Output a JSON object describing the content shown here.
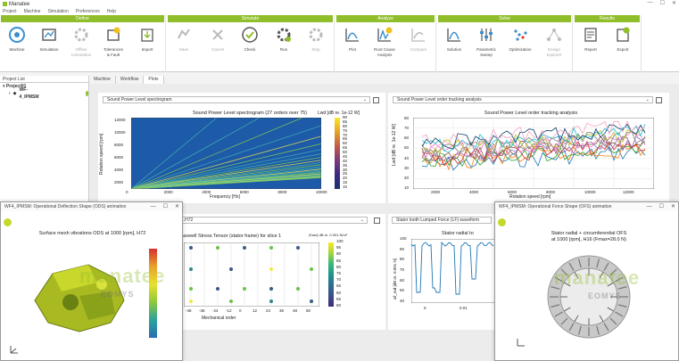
{
  "app": {
    "title": "Manatee"
  },
  "window_controls": {
    "minimize": "—",
    "maximize": "☐",
    "close": "✕"
  },
  "menu": [
    "Project",
    "Machine",
    "Simulation",
    "Preferences",
    "Help"
  ],
  "ribbon": {
    "groups": [
      {
        "title": "Define",
        "tools": [
          "Machine",
          "Simulation",
          "Offline\nCalculation",
          "Tolerances\n& Fault",
          "Import"
        ]
      },
      {
        "title": "Simulate",
        "tools": [
          "Save",
          "Cancel",
          "Check",
          "Run",
          "Stop"
        ]
      },
      {
        "title": "Analyze",
        "tools": [
          "Plot",
          "Root Cause\nAnalysis",
          "Compare"
        ]
      },
      {
        "title": "Solve",
        "tools": [
          "Solution",
          "Parametric\nSweep",
          "Optimization",
          "Design\nExplorer"
        ]
      },
      {
        "title": "Results",
        "tools": [
          "Report",
          "Export"
        ]
      }
    ]
  },
  "project_panel": {
    "header": "Project List",
    "project": "Project01",
    "item": "WF-4_IPMSM"
  },
  "tabs": [
    "Machine",
    "Workflow",
    "Plots"
  ],
  "plots": {
    "p1": {
      "select": "Sound Power Level spectrogram",
      "chart_title": "Sound Power Level spectrogram (27 orders over 75)",
      "ylabel": "Rotation speed [rpm]",
      "xlabel": "Frequency [Hz]",
      "colorbar_label": "Lwd [dB re. 1e-12 W]",
      "xticks": [
        "0",
        "2000",
        "4000",
        "6000",
        "8000",
        "10000"
      ],
      "yticks": [
        "12000",
        "10000",
        "8000",
        "6000",
        "4000",
        "2000"
      ],
      "cticks": [
        "90",
        "85",
        "80",
        "75",
        "70",
        "65",
        "60",
        "55",
        "50",
        "45",
        "40",
        "35",
        "30",
        "25",
        "20",
        "15",
        "10"
      ]
    },
    "p2": {
      "select": "Sound Power Level order tracking analysis",
      "chart_title": "Sound Power Level order tracking analysis",
      "ylabel": "Lwd [dB re. 1e-12 W]",
      "xlabel": "Rotation speed [rpm]",
      "xticks": [
        "2000",
        "4000",
        "6000",
        "8000",
        "10000",
        "12000"
      ],
      "yticks": [
        "80",
        "70",
        "60",
        "50",
        "40",
        "30",
        "20",
        "10"
      ]
    },
    "p3": {
      "select": "...H72",
      "chart_title": "p Maxwell Stress Tensor (stator frame) for slice 1",
      "colorbar_label": "|Srad| dB re. 0.001 N/m²",
      "xlabel": "Mechanical order",
      "xticks": [
        "-48",
        "-36",
        "-24",
        "-12",
        "0",
        "12",
        "24",
        "36",
        "48",
        "60"
      ],
      "cticks": [
        "100",
        "95",
        "90",
        "85",
        "80",
        "75",
        "70",
        "65",
        "60",
        "55",
        "50"
      ]
    },
    "p4": {
      "select": "Stator tooth Lumped Force (LF) waveform",
      "chart_title": "Stator radial to",
      "ylabel": "Δf_rad [dB re. 0.001 N]",
      "yticks": [
        "100",
        "90",
        "80",
        "70",
        "60",
        "50",
        "40"
      ],
      "xticks": [
        "0",
        "0.01"
      ]
    }
  },
  "float_left": {
    "title": "WF4_IPMSM: Operational Deflection Shape (ODS) animation",
    "caption": "Surface mesh vibrations ODS at 1000 [rpm], H72",
    "watermark": "manatee",
    "watermark2": "EOMYS"
  },
  "float_right": {
    "title": "WF4_IPMSM: Operational Force Shape (OFS) animation",
    "caption1": "Stator radial + circumferential OFS",
    "caption2": "at 1000 [rpm], H16 (Fmax=28.0 N)",
    "watermark": "manatee",
    "watermark2": "EOMYS"
  },
  "colors": {
    "accent": "#8fbe2a",
    "spectro_bg": "#1d5aa8"
  }
}
